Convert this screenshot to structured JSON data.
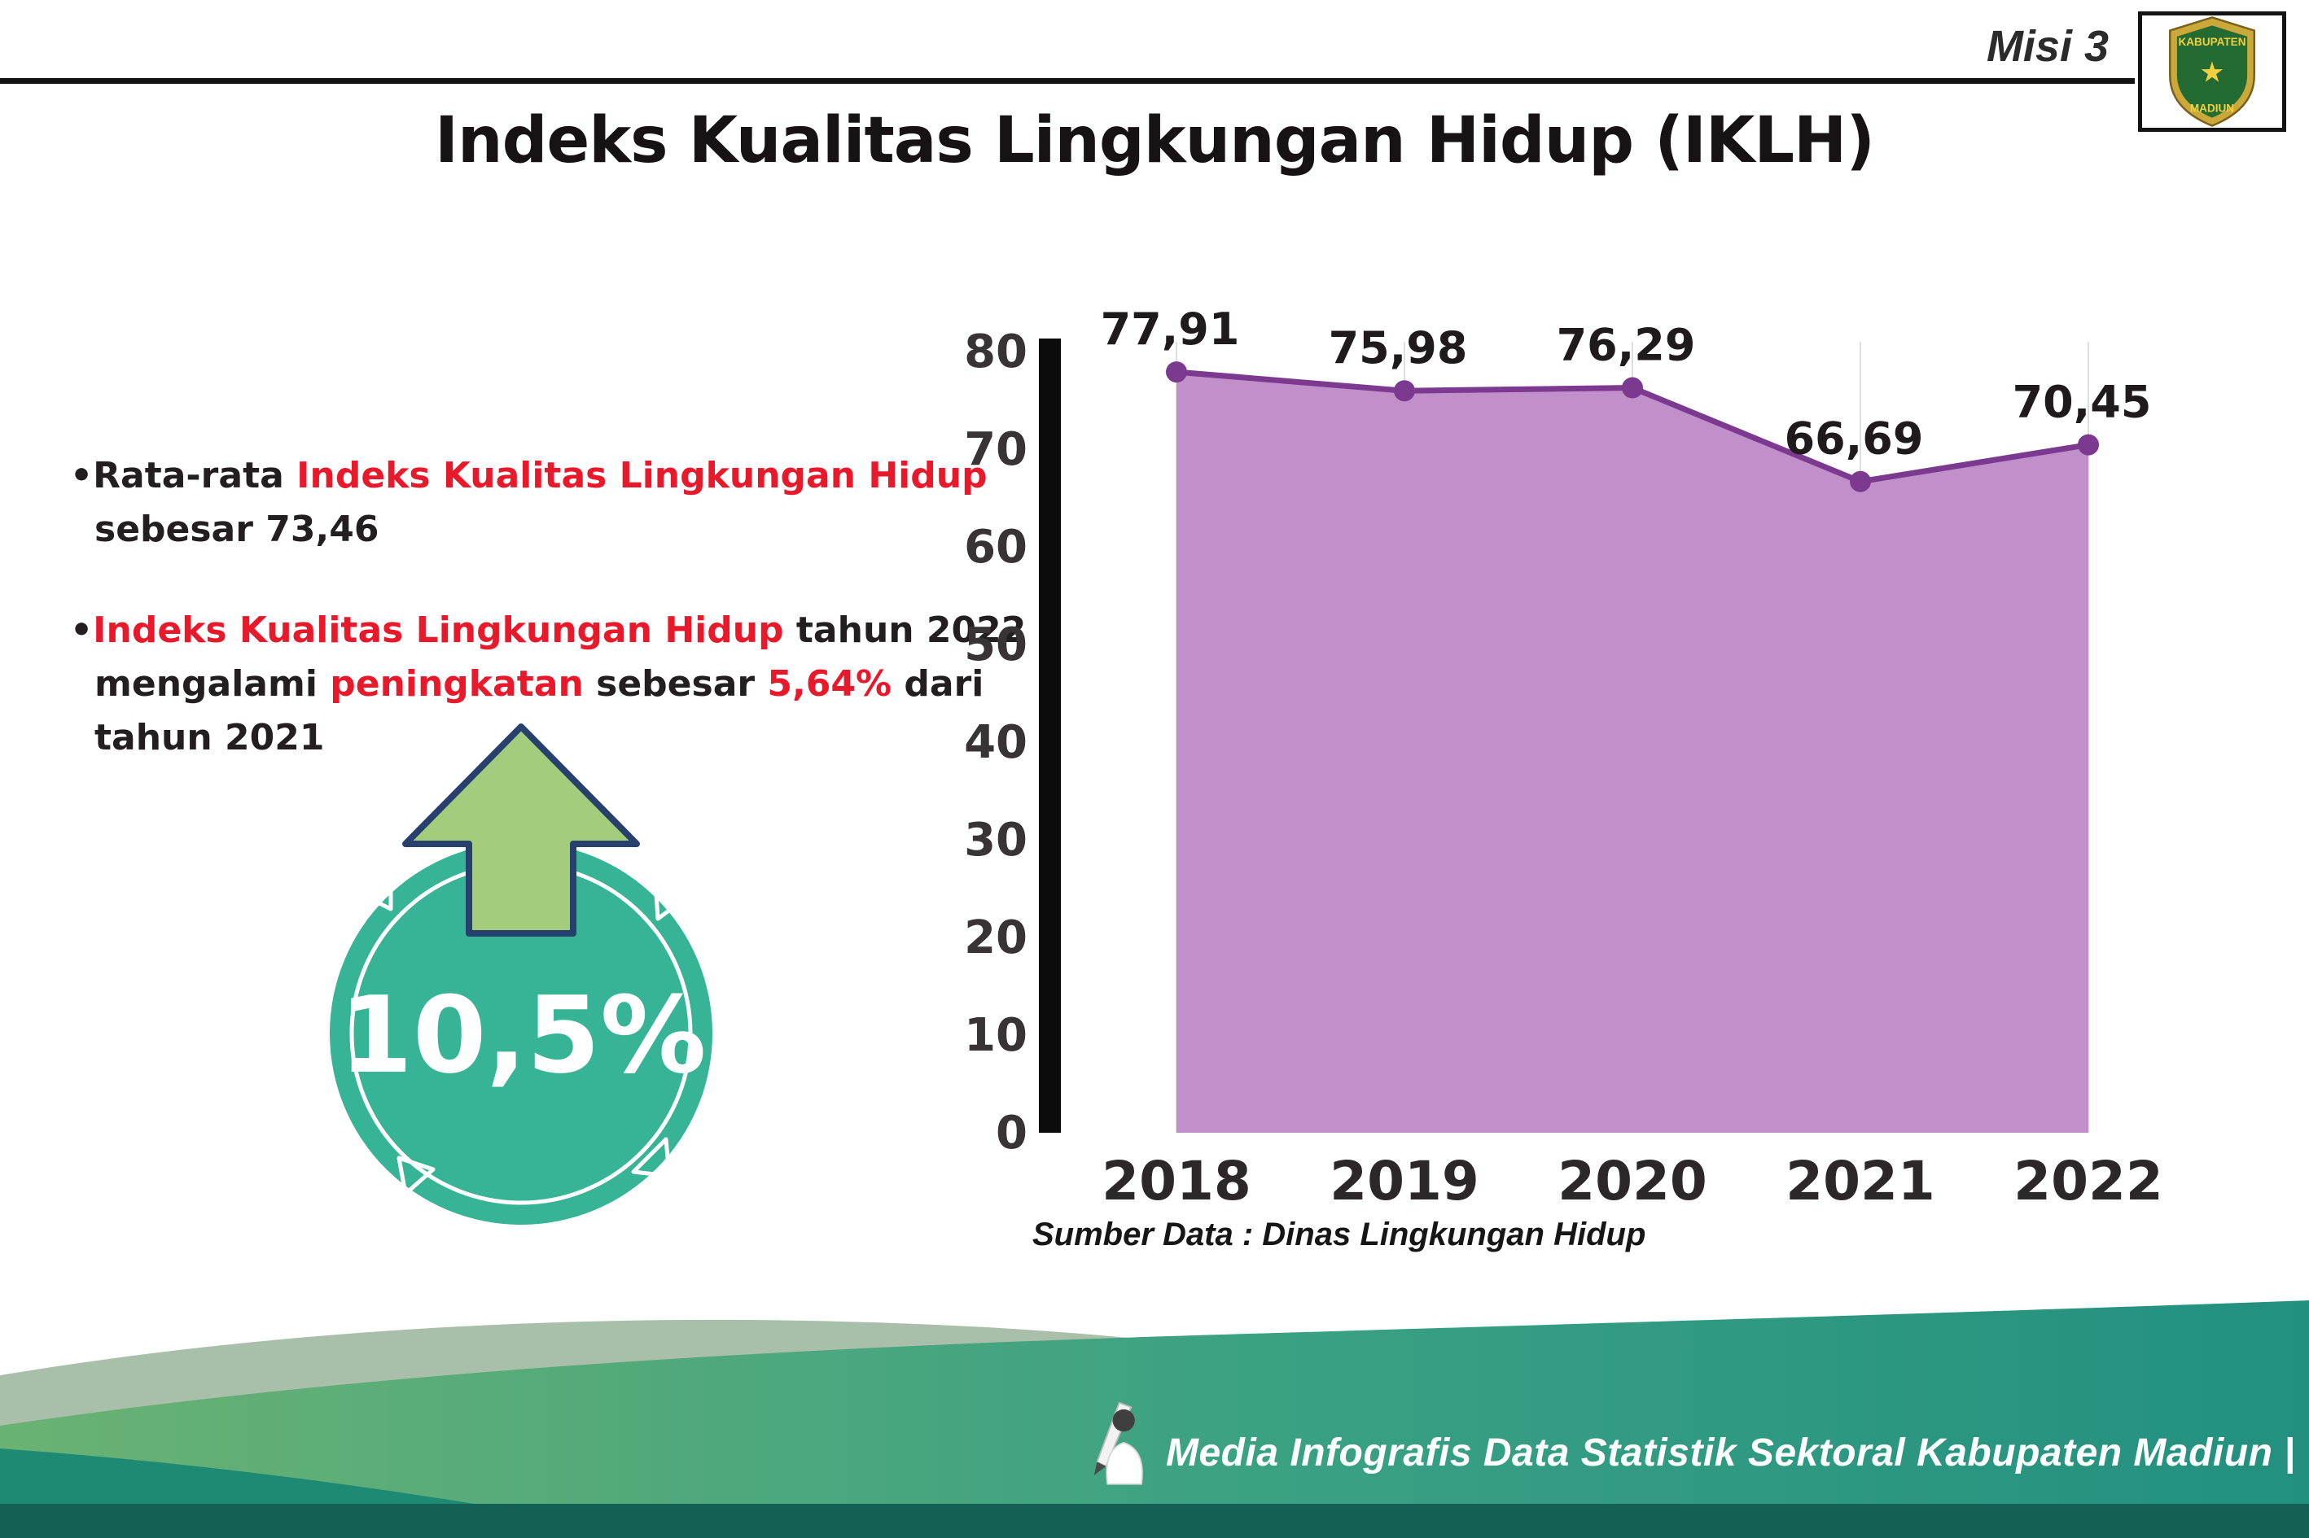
{
  "header": {
    "misi_label": "Misi 3",
    "title": "Indeks Kualitas Lingkungan Hidup (IKLH)",
    "logo_top": "KABUPATEN",
    "logo_bottom": "MADIUN",
    "logo_star": "★"
  },
  "bullets": [
    {
      "segments": [
        {
          "t": "•Rata-rata ",
          "c": "dark"
        },
        {
          "t": "Indeks Kualitas Lingkungan Hidup",
          "c": "red"
        },
        {
          "t": "\nsebesar 73,46",
          "c": "dark"
        }
      ]
    },
    {
      "segments": [
        {
          "t": "•",
          "c": "dark"
        },
        {
          "t": "Indeks Kualitas Lingkungan Hidup",
          "c": "red"
        },
        {
          "t": " tahun 2022\nmengalami ",
          "c": "dark"
        },
        {
          "t": "peningkatan",
          "c": "red"
        },
        {
          "t": " sebesar ",
          "c": "dark"
        },
        {
          "t": "5,64%",
          "c": "red"
        },
        {
          "t": " dari\ntahun 2021",
          "c": "dark"
        }
      ]
    }
  ],
  "highlight": {
    "value": "10,5%"
  },
  "chart_data": {
    "type": "area",
    "title": "Indeks Kualitas Lingkungan Hidup (IKLH)",
    "categories": [
      "2018",
      "2019",
      "2020",
      "2021",
      "2022"
    ],
    "values": [
      77.91,
      75.98,
      76.29,
      66.69,
      70.45
    ],
    "value_labels": [
      "77,91",
      "75,98",
      "76,29",
      "66,69",
      "70,45"
    ],
    "ylim": [
      0,
      80
    ],
    "yticks": [
      0,
      10,
      20,
      30,
      40,
      50,
      60,
      70,
      80
    ],
    "grid": "vertical-light",
    "legend": "none",
    "fill_color": "#c18fc9",
    "line_color": "#7b3990",
    "source": "Sumber Data : Dinas Lingkungan Hidup"
  },
  "footer": {
    "credit": "Media Infografis Data Statistik Sektoral Kabupaten Madiun |"
  },
  "colors": {
    "red": "#e8192b",
    "text_dark": "#231f20",
    "circle_teal": "#36b495",
    "arrow_green": "#a3cc7d",
    "arrow_outline": "#27406e",
    "footer_green": "#55a878",
    "footer_teal": "#2f9e88"
  }
}
